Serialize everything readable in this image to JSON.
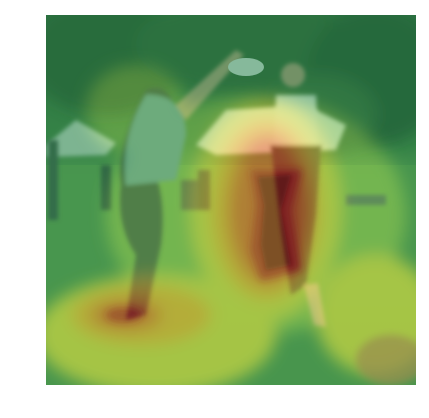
{
  "image": {
    "description_free": true,
    "overlay": "attention-heatmap",
    "colormap": [
      "#2e8b57",
      "#7cc35a",
      "#d7e04a",
      "#f2b632",
      "#e8602a",
      "#c81e1e",
      "#8e0d0d"
    ]
  }
}
